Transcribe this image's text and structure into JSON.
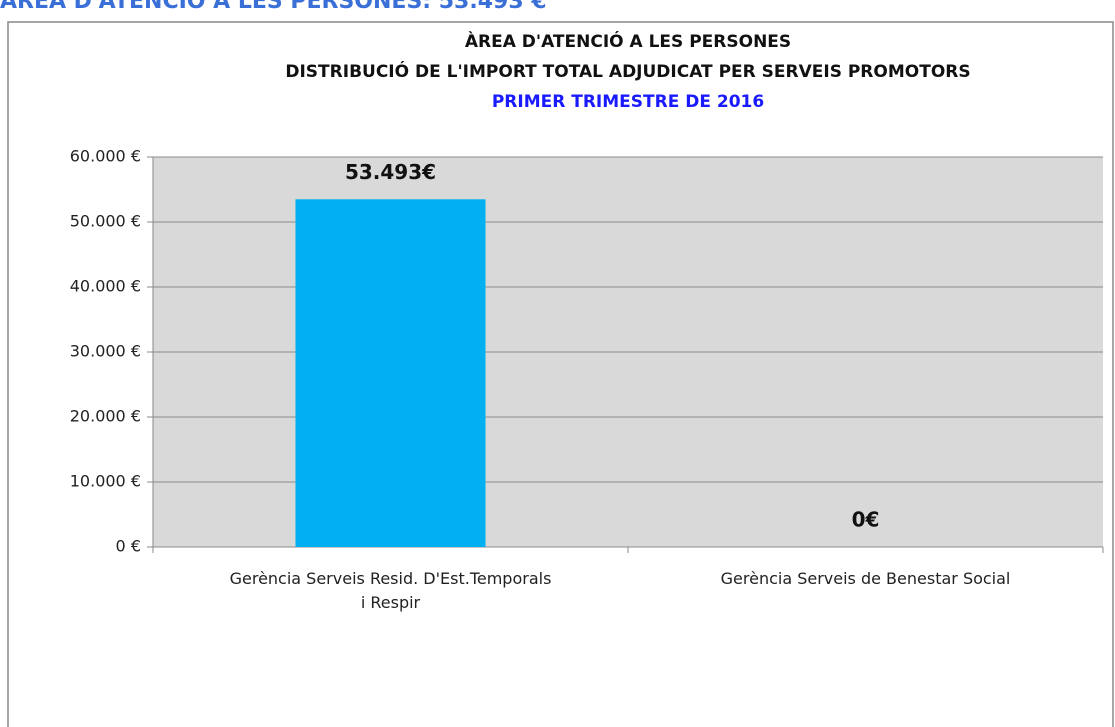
{
  "header": "ÀREA D'ATENCIÓ A LES PERSONES: 53.493 €",
  "chart_data": {
    "type": "bar",
    "title": "ÀREA D'ATENCIÓ A LES PERSONES",
    "subtitle": "DISTRIBUCIÓ DE L'IMPORT TOTAL ADJUDICAT PER SERVEIS PROMOTORS",
    "period": "PRIMER TRIMESTRE DE 2016",
    "categories": [
      "Gerència Serveis Resid. D'Est.Temporals i Respir",
      "Gerència Serveis de Benestar Social"
    ],
    "values": [
      53493,
      0
    ],
    "value_labels": [
      "53.493€",
      "0€"
    ],
    "color": "#00b0f0",
    "ylim": [
      0,
      60000
    ],
    "yticks": [
      {
        "value": 0,
        "label": "0 €"
      },
      {
        "value": 10000,
        "label": "10.000 €"
      },
      {
        "value": 20000,
        "label": "20.000 €"
      },
      {
        "value": 30000,
        "label": "30.000 €"
      },
      {
        "value": 40000,
        "label": "40.000 €"
      },
      {
        "value": 50000,
        "label": "50.000 €"
      },
      {
        "value": 60000,
        "label": "60.000 €"
      }
    ],
    "grid": true
  }
}
